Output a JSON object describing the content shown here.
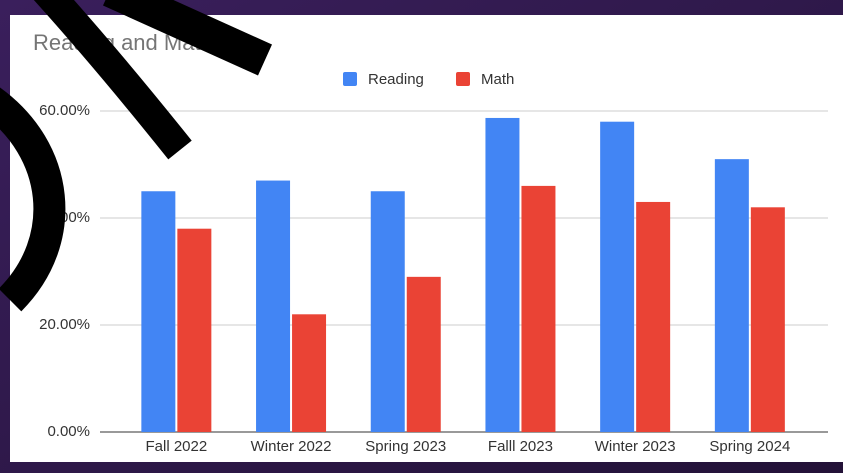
{
  "chart_data": {
    "type": "bar",
    "title": "Reading and Math",
    "categories": [
      "Fall 2022",
      "Winter 2022",
      "Spring 2023",
      "Falll 2023",
      "Winter 2023",
      "Spring 2024"
    ],
    "series": [
      {
        "name": "Reading",
        "color": "#4285f4",
        "values": [
          45,
          47,
          45,
          58.7,
          58,
          51
        ]
      },
      {
        "name": "Math",
        "color": "#ea4335",
        "values": [
          38,
          22,
          29,
          46,
          43,
          42
        ]
      }
    ],
    "ylim": [
      0,
      60
    ],
    "yticks": [
      {
        "value": 0,
        "label": "0.00%"
      },
      {
        "value": 20,
        "label": "20.00%"
      },
      {
        "value": 40,
        "label": "40.00%"
      },
      {
        "value": 60,
        "label": "60.00%"
      }
    ],
    "grid": true,
    "legend": "top"
  }
}
